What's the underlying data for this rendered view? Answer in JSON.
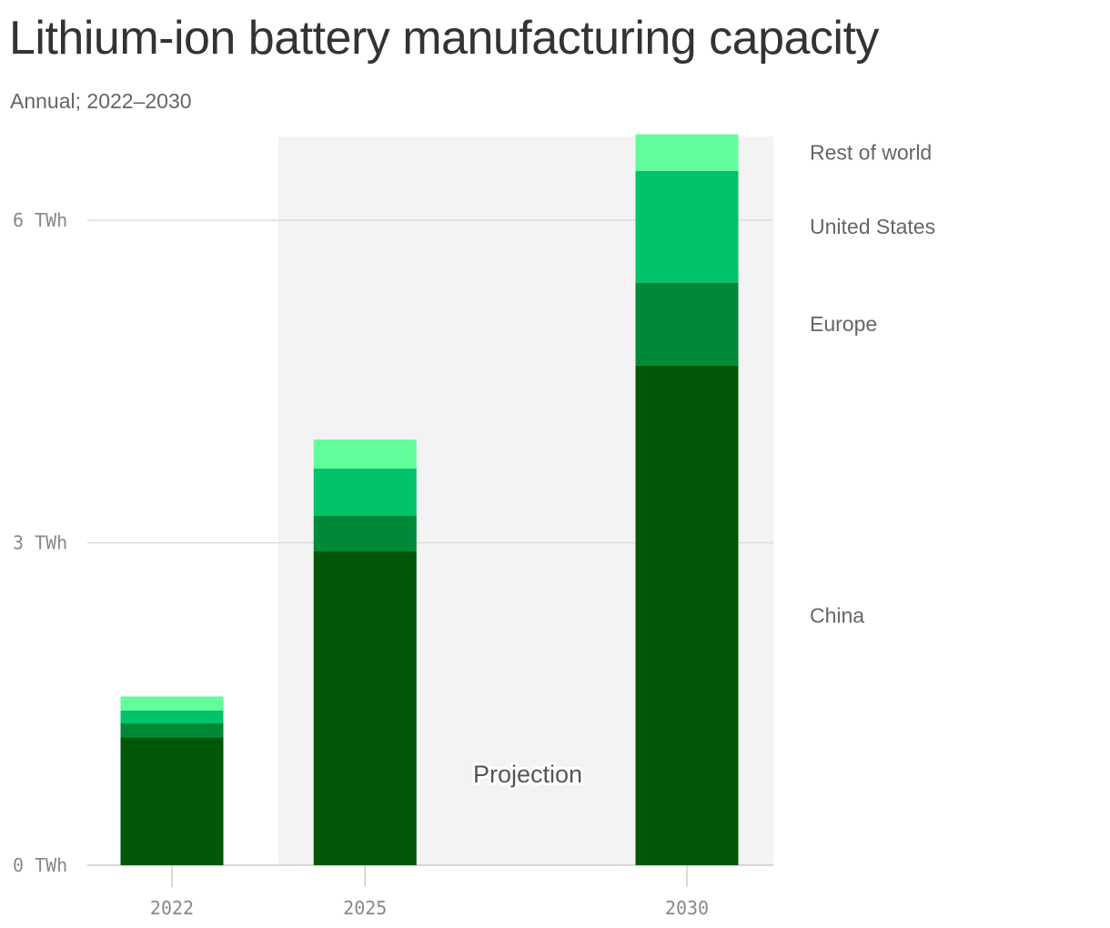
{
  "title": "Lithium-ion battery manufacturing capacity",
  "subtitle": "Annual; 2022–2030",
  "chart_data": {
    "type": "bar",
    "stacked": true,
    "categories": [
      "2022",
      "2025",
      "2030"
    ],
    "series": [
      {
        "name": "China",
        "color": "#005707",
        "values": [
          1.19,
          2.92,
          4.65
        ]
      },
      {
        "name": "Europe",
        "color": "#008a37",
        "values": [
          0.13,
          0.33,
          0.77
        ]
      },
      {
        "name": "United States",
        "color": "#00c36a",
        "values": [
          0.12,
          0.44,
          1.04
        ]
      },
      {
        "name": "Rest of world",
        "color": "#61fd9a",
        "values": [
          0.13,
          0.27,
          0.34
        ]
      }
    ],
    "yticks": [
      0,
      3,
      6
    ],
    "ytick_labels": [
      "0 TWh",
      "3 TWh",
      "6 TWh"
    ],
    "ylim": [
      0,
      6.78
    ],
    "yunit": "TWh",
    "xlabel": "",
    "ylabel": "",
    "grid": true,
    "legend_placement": "right",
    "projection_region": {
      "from": "2025",
      "to": "2030",
      "label": "Projection",
      "color": "#f3f3f3"
    }
  }
}
